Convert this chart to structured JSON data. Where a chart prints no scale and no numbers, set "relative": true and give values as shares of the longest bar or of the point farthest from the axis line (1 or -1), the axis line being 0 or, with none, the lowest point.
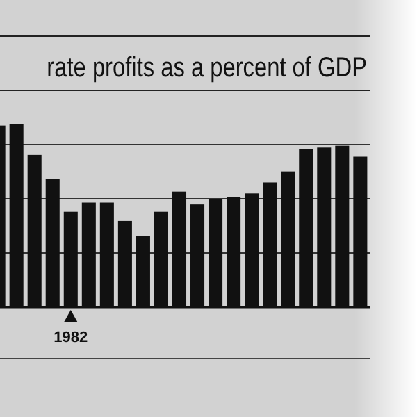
{
  "chart_data": {
    "type": "bar",
    "title": "rate profits as a percent of GDP",
    "relative": true,
    "grid": true,
    "categories": [
      null,
      null,
      null,
      null,
      "1982",
      null,
      null,
      null,
      null,
      null,
      null,
      null,
      null,
      null,
      null,
      null,
      null,
      null,
      null,
      null,
      null
    ],
    "values": [
      0.99,
      1,
      0.83,
      0.7,
      0.52,
      0.57,
      0.57,
      0.47,
      0.39,
      0.52,
      0.63,
      0.56,
      0.59,
      0.6,
      0.62,
      0.68,
      0.74,
      0.86,
      0.87,
      0.88,
      0.82
    ],
    "color": "#111111"
  }
}
